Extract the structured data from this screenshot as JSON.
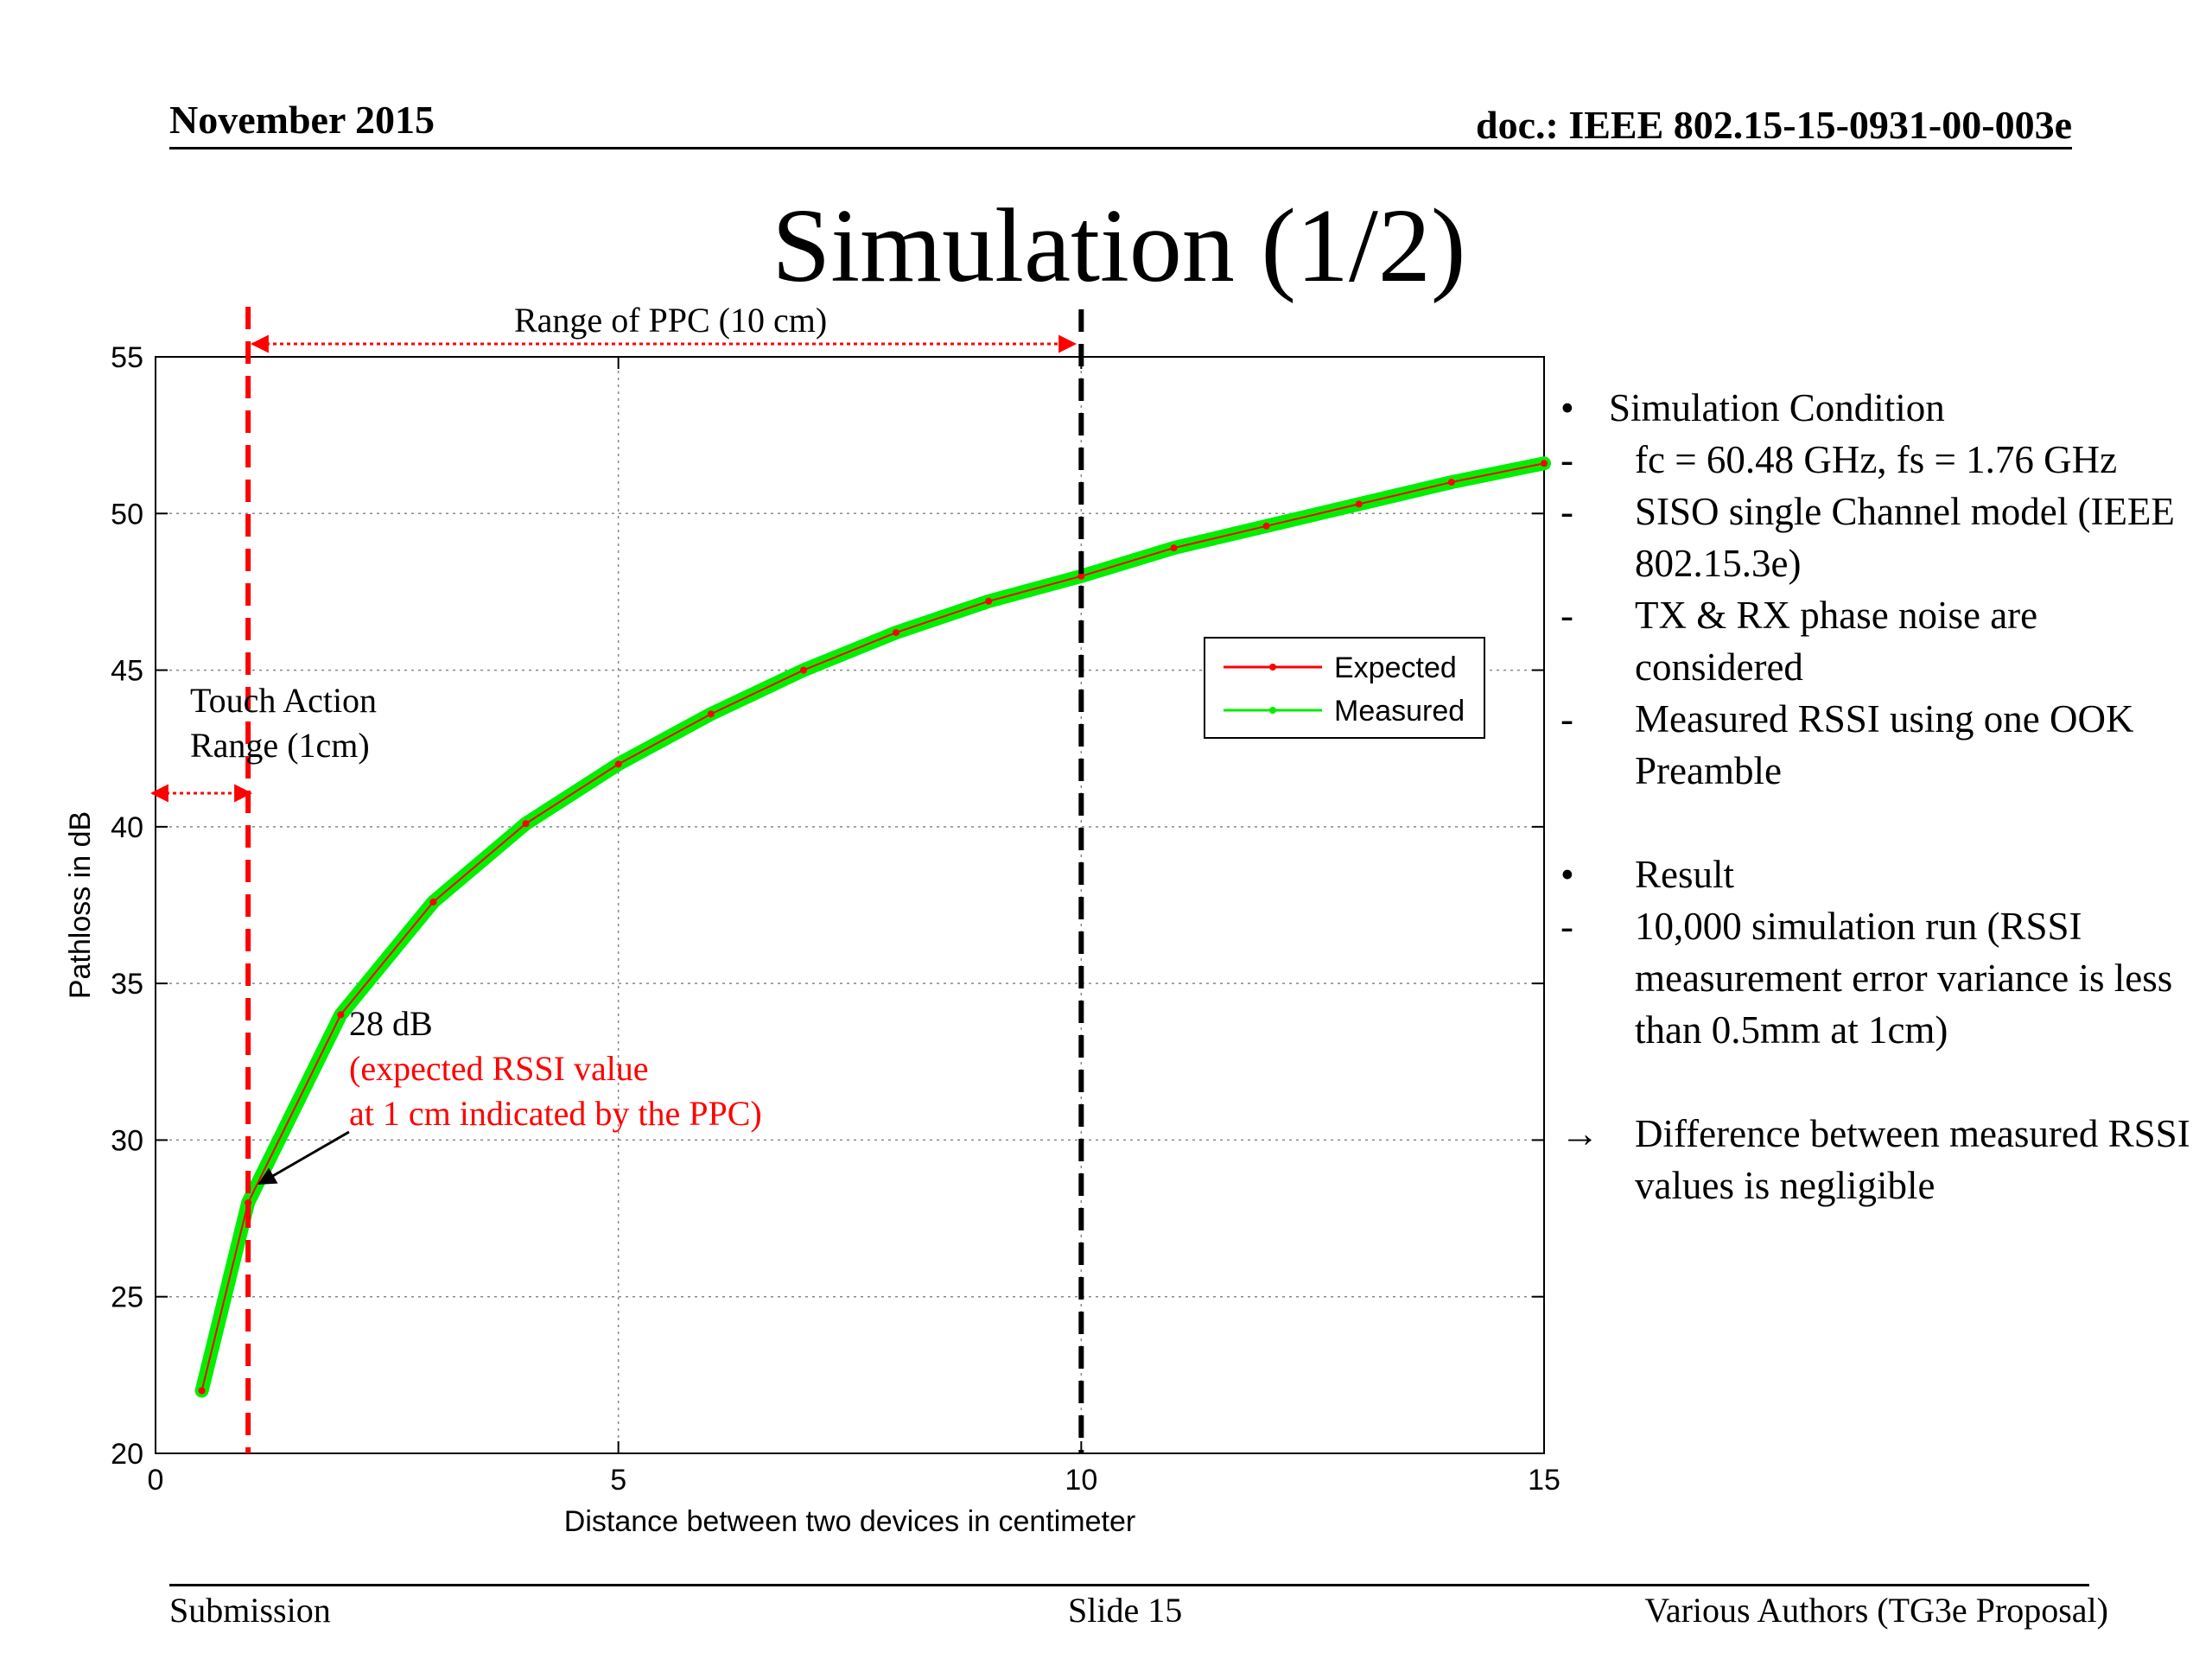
{
  "header": {
    "date": "November 2015",
    "doc": "doc.: IEEE 802.15-15-0931-00-003e"
  },
  "slide_title": "Simulation (1/2)",
  "footer": {
    "left": "Submission",
    "center": "Slide 15",
    "right": "Various Authors (TG3e Proposal)"
  },
  "annotations": {
    "range_ppc": "Range of  PPC (10 cm)",
    "touch_line1": "Touch Action",
    "touch_line2": "Range (1cm)",
    "db_label": "28 dB",
    "rssi_line1": "(expected RSSI value",
    "rssi_line2": "at 1 cm indicated by the PPC)"
  },
  "bullets": {
    "cond_marker": "•",
    "cond_head": "Simulation Condition",
    "dash": "-",
    "c1": "fc = 60.48 GHz, fs = 1.76 GHz",
    "c2": "SISO single Channel model (IEEE 802.15.3e)",
    "c3": "TX & RX phase noise are considered",
    "c4": "Measured RSSI using one OOK Preamble",
    "result_marker": "•",
    "result_head": "Result",
    "r1": "10,000 simulation run (RSSI measurement error variance is less than 0.5mm at 1cm)",
    "arrow_marker": "→",
    "r2": "Difference between measured RSSI values is negligible"
  },
  "colors": {
    "expected": "#ff0000",
    "measured": "#00ee00",
    "marker_red": "#ff0000",
    "marker_black": "#000000"
  },
  "chart_data": {
    "type": "line",
    "title": "",
    "xlabel": "Distance between two devices in centimeter",
    "ylabel": "Pathloss in dB",
    "xlim": [
      0,
      15
    ],
    "ylim": [
      20,
      55
    ],
    "xticks": [
      0,
      5,
      10,
      15
    ],
    "yticks": [
      20,
      25,
      30,
      35,
      40,
      45,
      50,
      55
    ],
    "grid": true,
    "legend_position": "right",
    "x": [
      0.5,
      1,
      2,
      3,
      4,
      5,
      6,
      7,
      8,
      9,
      10,
      11,
      12,
      13,
      14,
      15
    ],
    "series": [
      {
        "name": "Expected",
        "values": [
          22.0,
          28.0,
          34.0,
          37.6,
          40.1,
          42.0,
          43.6,
          45.0,
          46.2,
          47.2,
          48.0,
          48.9,
          49.6,
          50.3,
          51.0,
          51.6
        ]
      },
      {
        "name": "Measured",
        "values": [
          22.0,
          28.0,
          34.0,
          37.6,
          40.1,
          42.0,
          43.6,
          45.0,
          46.2,
          47.2,
          48.0,
          48.9,
          49.6,
          50.3,
          51.0,
          51.6
        ]
      }
    ]
  }
}
